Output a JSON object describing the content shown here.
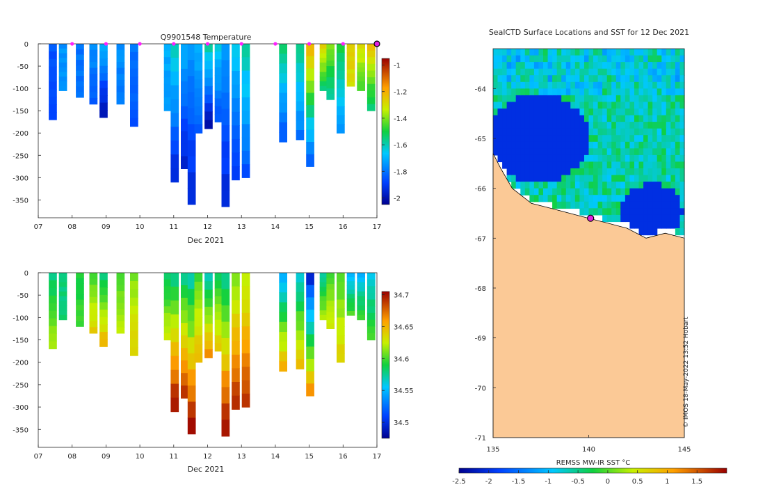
{
  "chart_data": [
    {
      "type": "heatmap",
      "name": "temperature-profile",
      "title": "Q9901548  Temperature",
      "xlabel": "Dec 2021",
      "xticks": [
        "07",
        "08",
        "09",
        "10",
        "11",
        "12",
        "13",
        "14",
        "15",
        "16",
        "17"
      ],
      "xlim": [
        7,
        17
      ],
      "ylim": [
        -390,
        0
      ],
      "yticks": [
        0,
        -50,
        -100,
        -150,
        -200,
        -250,
        -300,
        -350
      ],
      "colorbar": {
        "ticks": [
          -1,
          -1.2,
          -1.4,
          -1.6,
          -1.8,
          -2
        ],
        "range": [
          -2.05,
          -0.95
        ]
      },
      "surface_markers": [
        8,
        9,
        10,
        11,
        12,
        13,
        14,
        15,
        16
      ],
      "latest_profile_day": 17,
      "profiles": [
        {
          "day": 7.4,
          "depth": -170,
          "top": -1.85,
          "bottom": -1.9
        },
        {
          "day": 7.7,
          "depth": -105,
          "top": -1.75,
          "bottom": -1.75
        },
        {
          "day": 8.2,
          "depth": -120,
          "top": -1.8,
          "bottom": -1.8
        },
        {
          "day": 8.6,
          "depth": -135,
          "top": -1.75,
          "bottom": -1.85
        },
        {
          "day": 8.9,
          "depth": -165,
          "top": -1.7,
          "bottom": -2.0
        },
        {
          "day": 9.4,
          "depth": -135,
          "top": -1.75,
          "bottom": -1.8
        },
        {
          "day": 9.8,
          "depth": -185,
          "top": -1.8,
          "bottom": -1.85
        },
        {
          "day": 10.8,
          "depth": -150,
          "top": -1.7,
          "bottom": -1.75
        },
        {
          "day": 11.0,
          "depth": -310,
          "top": -1.6,
          "bottom": -1.95
        },
        {
          "day": 11.3,
          "depth": -280,
          "top": -1.7,
          "bottom": -1.95
        },
        {
          "day": 11.5,
          "depth": -360,
          "top": -1.75,
          "bottom": -1.95
        },
        {
          "day": 11.7,
          "depth": -200,
          "top": -1.7,
          "bottom": -1.85
        },
        {
          "day": 12.0,
          "depth": -190,
          "top": -1.6,
          "bottom": -2.0
        },
        {
          "day": 12.3,
          "depth": -175,
          "top": -1.65,
          "bottom": -1.85
        },
        {
          "day": 12.5,
          "depth": -365,
          "top": -1.75,
          "bottom": -1.95
        },
        {
          "day": 12.8,
          "depth": -305,
          "top": -1.65,
          "bottom": -1.9
        },
        {
          "day": 13.1,
          "depth": -300,
          "top": -1.6,
          "bottom": -1.85
        },
        {
          "day": 14.2,
          "depth": -220,
          "top": -1.55,
          "bottom": -1.85
        },
        {
          "day": 14.7,
          "depth": -215,
          "top": -1.55,
          "bottom": -1.8
        },
        {
          "day": 15.0,
          "depth": -275,
          "top": -1.2,
          "bottom": -1.85
        },
        {
          "day": 15.4,
          "depth": -105,
          "top": -1.25,
          "bottom": -1.55
        },
        {
          "day": 15.6,
          "depth": -125,
          "top": -1.4,
          "bottom": -1.6
        },
        {
          "day": 15.9,
          "depth": -200,
          "top": -1.5,
          "bottom": -1.75
        },
        {
          "day": 16.2,
          "depth": -95,
          "top": -1.25,
          "bottom": -1.3
        },
        {
          "day": 16.5,
          "depth": -105,
          "top": -1.3,
          "bottom": -1.45
        },
        {
          "day": 16.8,
          "depth": -150,
          "top": -1.25,
          "bottom": -1.55
        }
      ]
    },
    {
      "type": "heatmap",
      "name": "salinity-profile",
      "title": "",
      "xlabel": "Dec 2021",
      "xticks": [
        "07",
        "08",
        "09",
        "10",
        "11",
        "12",
        "13",
        "14",
        "15",
        "16",
        "17"
      ],
      "xlim": [
        7,
        17
      ],
      "ylim": [
        -390,
        0
      ],
      "yticks": [
        0,
        -50,
        -100,
        -150,
        -200,
        -250,
        -300,
        -350
      ],
      "colorbar": {
        "ticks": [
          34.7,
          34.65,
          34.6,
          34.55,
          34.5
        ],
        "range": [
          34.475,
          34.705
        ]
      },
      "profiles": [
        {
          "day": 7.4,
          "depth": -170,
          "top": 34.58,
          "bottom": 34.62
        },
        {
          "day": 7.7,
          "depth": -105,
          "top": 34.58,
          "bottom": 34.58
        },
        {
          "day": 8.2,
          "depth": -120,
          "top": 34.59,
          "bottom": 34.6
        },
        {
          "day": 8.6,
          "depth": -135,
          "top": 34.6,
          "bottom": 34.64
        },
        {
          "day": 8.9,
          "depth": -165,
          "top": 34.58,
          "bottom": 34.65
        },
        {
          "day": 9.4,
          "depth": -135,
          "top": 34.6,
          "bottom": 34.62
        },
        {
          "day": 9.8,
          "depth": -185,
          "top": 34.61,
          "bottom": 34.64
        },
        {
          "day": 10.8,
          "depth": -150,
          "top": 34.58,
          "bottom": 34.63
        },
        {
          "day": 11.0,
          "depth": -310,
          "top": 34.58,
          "bottom": 34.7
        },
        {
          "day": 11.3,
          "depth": -280,
          "top": 34.58,
          "bottom": 34.69
        },
        {
          "day": 11.5,
          "depth": -360,
          "top": 34.57,
          "bottom": 34.7
        },
        {
          "day": 11.7,
          "depth": -200,
          "top": 34.6,
          "bottom": 34.65
        },
        {
          "day": 12.0,
          "depth": -190,
          "top": 34.57,
          "bottom": 34.66
        },
        {
          "day": 12.3,
          "depth": -175,
          "top": 34.59,
          "bottom": 34.64
        },
        {
          "day": 12.5,
          "depth": -365,
          "top": 34.58,
          "bottom": 34.7
        },
        {
          "day": 12.8,
          "depth": -305,
          "top": 34.61,
          "bottom": 34.69
        },
        {
          "day": 13.1,
          "depth": -300,
          "top": 34.62,
          "bottom": 34.69
        },
        {
          "day": 14.2,
          "depth": -220,
          "top": 34.55,
          "bottom": 34.65
        },
        {
          "day": 14.7,
          "depth": -215,
          "top": 34.56,
          "bottom": 34.65
        },
        {
          "day": 15.0,
          "depth": -275,
          "top": 34.5,
          "bottom": 34.66
        },
        {
          "day": 15.4,
          "depth": -105,
          "top": 34.57,
          "bottom": 34.62
        },
        {
          "day": 15.6,
          "depth": -125,
          "top": 34.6,
          "bottom": 34.63
        },
        {
          "day": 15.9,
          "depth": -200,
          "top": 34.6,
          "bottom": 34.64
        },
        {
          "day": 16.2,
          "depth": -95,
          "top": 34.55,
          "bottom": 34.6
        },
        {
          "day": 16.5,
          "depth": -105,
          "top": 34.55,
          "bottom": 34.6
        },
        {
          "day": 16.8,
          "depth": -150,
          "top": 34.56,
          "bottom": 34.6
        }
      ]
    },
    {
      "type": "heatmap",
      "name": "sst-map",
      "title": "SealCTD Surface Locations and SST for 12 Dec 2021",
      "xticks": [
        "135",
        "140",
        "145"
      ],
      "yticks": [
        "-64",
        "-65",
        "-66",
        "-67",
        "-68",
        "-69",
        "-70",
        "-71"
      ],
      "xlim": [
        135,
        145
      ],
      "ylim": [
        -71,
        -63.2
      ],
      "colorbar_label": "REMSS MW-IR SST °C",
      "colorbar": {
        "ticks": [
          "-2.5",
          "-2",
          "-1.5",
          "-1",
          "-0.5",
          "0",
          "0.5",
          "1",
          "1.5"
        ],
        "range": [
          -2.5,
          2
        ]
      },
      "seal_location": {
        "lon": 140.1,
        "lat": -66.6
      },
      "coastline": [
        [
          135,
          -65.3
        ],
        [
          135.4,
          -65.6
        ],
        [
          136,
          -66.0
        ],
        [
          137,
          -66.3
        ],
        [
          138,
          -66.4
        ],
        [
          139,
          -66.5
        ],
        [
          140,
          -66.6
        ],
        [
          141,
          -66.7
        ],
        [
          142,
          -66.8
        ],
        [
          143,
          -67.0
        ],
        [
          144,
          -66.9
        ],
        [
          145,
          -67.0
        ]
      ]
    }
  ],
  "footer": {
    "stamp": "© IMOS 18-May-2022 13:52 Hobart"
  }
}
